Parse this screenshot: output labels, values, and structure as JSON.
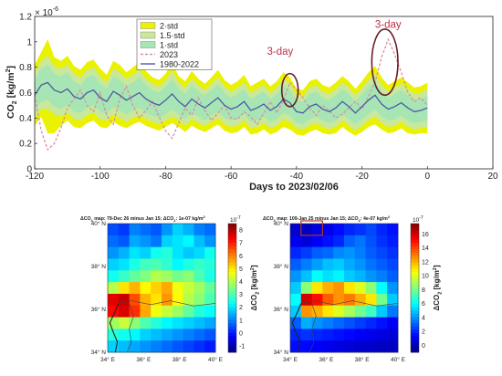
{
  "chart_data": [
    {
      "type": "area",
      "xlabel": "Days to 2023/02/06",
      "ylabel": "CO₂ [kg/m²]",
      "ylabel_main": "CO",
      "ylabel_sub": "2",
      "ylabel_unit": " [kg/m",
      "ylabel_unit_sup": "2",
      "ylabel_close": "]",
      "y_exponent": "× 10",
      "y_exponent_power": "-6",
      "xlim": [
        -120,
        20
      ],
      "ylim": [
        0,
        1.2e-06
      ],
      "x_ticks": [
        -120,
        -100,
        -80,
        -60,
        -40,
        -20,
        0,
        20
      ],
      "y_ticks": [
        0,
        0.2,
        0.4,
        0.6,
        0.8,
        1,
        1.2
      ],
      "grid": false,
      "legend_position": "top-left",
      "legend": [
        {
          "label": "2·std",
          "color": "#eaf200",
          "kind": "patch"
        },
        {
          "label": "1.5·std",
          "color": "#c9e89a",
          "kind": "patch"
        },
        {
          "label": "1·std",
          "color": "#a7e6b4",
          "kind": "patch"
        },
        {
          "label": "2023",
          "color": "#d98fa0",
          "kind": "dashed"
        },
        {
          "label": "1980-2022",
          "color": "#4b5aa8",
          "kind": "line"
        }
      ],
      "x": [
        -120,
        -118,
        -116,
        -114,
        -112,
        -110,
        -108,
        -106,
        -104,
        -102,
        -100,
        -98,
        -96,
        -94,
        -92,
        -90,
        -88,
        -86,
        -84,
        -82,
        -80,
        -78,
        -76,
        -74,
        -72,
        -70,
        -68,
        -66,
        -64,
        -62,
        -60,
        -58,
        -56,
        -54,
        -52,
        -50,
        -48,
        -46,
        -44,
        -42,
        -40,
        -38,
        -36,
        -34,
        -32,
        -30,
        -28,
        -26,
        -24,
        -22,
        -20,
        -18,
        -16,
        -14,
        -12,
        -10,
        -8,
        -6,
        -4,
        -2,
        0
      ],
      "series": [
        {
          "name": "1980-2022",
          "values": [
            5.8e-07,
            6.6e-07,
            6.8e-07,
            6.2e-07,
            6e-07,
            6.3e-07,
            5.7e-07,
            5.5e-07,
            6e-07,
            6.2e-07,
            5.6e-07,
            5.3e-07,
            6.1e-07,
            5.8e-07,
            5.4e-07,
            5.7e-07,
            6e-07,
            5.5e-07,
            5.2e-07,
            5e-07,
            5.4e-07,
            5.9e-07,
            5.3e-07,
            4.9e-07,
            5.5e-07,
            5.1e-07,
            4.8e-07,
            5.2e-07,
            5.6e-07,
            5e-07,
            4.7e-07,
            4.9e-07,
            5.3e-07,
            4.6e-07,
            4.8e-07,
            5.1e-07,
            4.6e-07,
            4.9e-07,
            5.5e-07,
            5.2e-07,
            4.5e-07,
            4.4e-07,
            4.9e-07,
            5.1e-07,
            4.7e-07,
            4.5e-07,
            4.8e-07,
            5.3e-07,
            4.9e-07,
            4.4e-07,
            4.9e-07,
            5.4e-07,
            5.8e-07,
            5.1e-07,
            4.7e-07,
            4.9e-07,
            5.2e-07,
            4.8e-07,
            4.5e-07,
            4.6e-07,
            4.8e-07
          ]
        },
        {
          "name": "2023",
          "values": [
            5.8e-07,
            3e-07,
            1.5e-07,
            2e-07,
            3.2e-07,
            4.8e-07,
            5.5e-07,
            6.2e-07,
            5e-07,
            4.5e-07,
            6e-07,
            4.2e-07,
            3.5e-07,
            5.5e-07,
            6.5e-07,
            5e-07,
            4e-07,
            4.6e-07,
            5.3e-07,
            4.1e-07,
            3e-07,
            2.4e-07,
            3.6e-07,
            4.8e-07,
            4.2e-07,
            5.6e-07,
            4.6e-07,
            3.8e-07,
            4.4e-07,
            5e-07,
            4e-07,
            3.9e-07,
            4.5e-07,
            4.1e-07,
            3.5e-07,
            4.4e-07,
            5.3e-07,
            4.4e-07,
            5.4e-07,
            6.8e-07,
            6.2e-07,
            5.6e-07,
            4.8e-07,
            4.2e-07,
            5e-07,
            4.6e-07,
            4e-07,
            4.3e-07,
            4.8e-07,
            5.3e-07,
            4.7e-07,
            5.7e-07,
            6.8e-07,
            8.8e-07,
            1.02e-06,
            9e-07,
            7.6e-07,
            6e-07,
            5.3e-07,
            5.6e-07,
            5e-07
          ]
        },
        {
          "name": "1·std",
          "lower": [
            4.6e-07,
            5.3e-07,
            5.4e-07,
            4.9e-07,
            4.7e-07,
            5e-07,
            4.5e-07,
            4.4e-07,
            4.8e-07,
            5e-07,
            4.5e-07,
            4.3e-07,
            4.9e-07,
            4.6e-07,
            4.3e-07,
            4.6e-07,
            4.8e-07,
            4.4e-07,
            4.2e-07,
            4e-07,
            4.3e-07,
            4.7e-07,
            4.3e-07,
            3.9e-07,
            4.4e-07,
            4.1e-07,
            3.8e-07,
            4.2e-07,
            4.5e-07,
            4e-07,
            3.8e-07,
            3.9e-07,
            4.3e-07,
            3.7e-07,
            3.8e-07,
            4.1e-07,
            3.7e-07,
            3.9e-07,
            4.4e-07,
            4.2e-07,
            3.6e-07,
            3.5e-07,
            3.9e-07,
            4.1e-07,
            3.8e-07,
            3.6e-07,
            3.8e-07,
            4.3e-07,
            3.9e-07,
            3.5e-07,
            3.9e-07,
            4.3e-07,
            4.7e-07,
            4.1e-07,
            3.8e-07,
            3.9e-07,
            4.2e-07,
            3.8e-07,
            3.6e-07,
            3.7e-07,
            3.8e-07
          ],
          "upper": [
            7e-07,
            7.9e-07,
            8.2e-07,
            7.5e-07,
            7.3e-07,
            7.6e-07,
            6.9e-07,
            6.6e-07,
            7.2e-07,
            7.4e-07,
            6.7e-07,
            6.3e-07,
            7.3e-07,
            7e-07,
            6.5e-07,
            6.8e-07,
            7.2e-07,
            6.6e-07,
            6.2e-07,
            6e-07,
            6.5e-07,
            7.1e-07,
            6.3e-07,
            5.9e-07,
            6.6e-07,
            6.1e-07,
            5.8e-07,
            6.2e-07,
            6.7e-07,
            6e-07,
            5.6e-07,
            5.9e-07,
            6.3e-07,
            5.5e-07,
            5.8e-07,
            6.1e-07,
            5.5e-07,
            5.9e-07,
            6.6e-07,
            6.2e-07,
            5.4e-07,
            5.3e-07,
            5.9e-07,
            6.1e-07,
            5.6e-07,
            5.4e-07,
            5.8e-07,
            6.3e-07,
            5.9e-07,
            5.3e-07,
            5.9e-07,
            6.5e-07,
            6.9e-07,
            6.1e-07,
            5.6e-07,
            5.9e-07,
            6.2e-07,
            5.8e-07,
            5.4e-07,
            5.5e-07,
            5.8e-07
          ]
        },
        {
          "name": "1.5·std",
          "lower": [
            4e-07,
            4.7e-07,
            4.7e-07,
            4.3e-07,
            4.1e-07,
            4.4e-07,
            3.9e-07,
            3.8e-07,
            4.2e-07,
            4.4e-07,
            3.9e-07,
            3.8e-07,
            4.3e-07,
            4e-07,
            3.7e-07,
            4e-07,
            4.2e-07,
            3.9e-07,
            3.7e-07,
            3.5e-07,
            3.8e-07,
            4.1e-07,
            3.8e-07,
            3.4e-07,
            3.9e-07,
            3.6e-07,
            3.4e-07,
            3.7e-07,
            4e-07,
            3.5e-07,
            3.3e-07,
            3.4e-07,
            3.8e-07,
            3.2e-07,
            3.3e-07,
            3.6e-07,
            3.2e-07,
            3.4e-07,
            3.9e-07,
            3.7e-07,
            3.2e-07,
            3.1e-07,
            3.4e-07,
            3.6e-07,
            3.3e-07,
            3.1e-07,
            3.3e-07,
            3.8e-07,
            3.4e-07,
            3e-07,
            3.4e-07,
            3.8e-07,
            4.1e-07,
            3.6e-07,
            3.3e-07,
            3.4e-07,
            3.7e-07,
            3.3e-07,
            3.1e-07,
            3.2e-07,
            3.3e-07
          ],
          "upper": [
            7.6e-07,
            8.5e-07,
            8.9e-07,
            8.1e-07,
            7.9e-07,
            8.2e-07,
            7.5e-07,
            7.2e-07,
            7.8e-07,
            8e-07,
            7.3e-07,
            6.8e-07,
            7.9e-07,
            7.6e-07,
            7.1e-07,
            7.4e-07,
            7.8e-07,
            7.1e-07,
            6.7e-07,
            6.5e-07,
            7e-07,
            7.7e-07,
            6.8e-07,
            6.4e-07,
            7.1e-07,
            6.6e-07,
            6.2e-07,
            6.7e-07,
            7.2e-07,
            6.5e-07,
            6.1e-07,
            6.4e-07,
            6.8e-07,
            6e-07,
            6.3e-07,
            6.6e-07,
            6e-07,
            6.4e-07,
            7.1e-07,
            6.7e-07,
            5.8e-07,
            5.7e-07,
            6.4e-07,
            6.6e-07,
            6.1e-07,
            5.9e-07,
            6.3e-07,
            6.8e-07,
            6.4e-07,
            5.8e-07,
            6.4e-07,
            7e-07,
            7.5e-07,
            6.6e-07,
            6.1e-07,
            6.4e-07,
            6.7e-07,
            6.3e-07,
            5.9e-07,
            6e-07,
            6.3e-07
          ]
        },
        {
          "name": "2·std",
          "lower": [
            3.4e-07,
            4.1e-07,
            2.8e-07,
            2.8e-07,
            3.4e-07,
            3.8e-07,
            3.3e-07,
            3.2e-07,
            3.6e-07,
            3.8e-07,
            3.3e-07,
            3.2e-07,
            3.7e-07,
            3.4e-07,
            3.2e-07,
            3.5e-07,
            3.7e-07,
            3.4e-07,
            3.2e-07,
            3e-07,
            3.3e-07,
            3.6e-07,
            3.3e-07,
            2.9e-07,
            3.4e-07,
            3.1e-07,
            2.9e-07,
            3.2e-07,
            3.5e-07,
            3e-07,
            2.8e-07,
            2.9e-07,
            3.3e-07,
            2.7e-07,
            2.8e-07,
            3.1e-07,
            2.7e-07,
            2.9e-07,
            3.3e-07,
            3.1e-07,
            2.7e-07,
            2.6e-07,
            2.9e-07,
            3.1e-07,
            2.8e-07,
            2.7e-07,
            2.8e-07,
            3.3e-07,
            2.9e-07,
            2.6e-07,
            2.9e-07,
            3.3e-07,
            3.5e-07,
            3.1e-07,
            2.8e-07,
            2.9e-07,
            3.2e-07,
            2.8e-07,
            2.7e-07,
            2.8e-07,
            2.8e-07
          ],
          "upper": [
            8.2e-07,
            9.2e-07,
            1.02e-06,
            8.8e-07,
            8.5e-07,
            8.9e-07,
            8.1e-07,
            7.8e-07,
            8.4e-07,
            8.6e-07,
            7.9e-07,
            7.4e-07,
            8.5e-07,
            8.2e-07,
            7.6e-07,
            8e-07,
            8.4e-07,
            7.7e-07,
            7.2e-07,
            7e-07,
            7.5e-07,
            8.3e-07,
            7.3e-07,
            6.9e-07,
            7.7e-07,
            7.1e-07,
            6.7e-07,
            7.2e-07,
            7.8e-07,
            7e-07,
            6.6e-07,
            6.9e-07,
            7.4e-07,
            6.5e-07,
            6.8e-07,
            7.1e-07,
            6.5e-07,
            6.9e-07,
            7.6e-07,
            7.2e-07,
            6.3e-07,
            6.2e-07,
            6.9e-07,
            7.1e-07,
            6.6e-07,
            6.4e-07,
            6.8e-07,
            7.3e-07,
            6.9e-07,
            6.3e-07,
            6.9e-07,
            7.6e-07,
            8.1e-07,
            7.2e-07,
            6.6e-07,
            6.9e-07,
            7.2e-07,
            6.8e-07,
            6.4e-07,
            6.5e-07,
            6.8e-07
          ]
        }
      ],
      "annotations": [
        {
          "text": "3-day",
          "x": -45,
          "y": 9e-07,
          "color": "#c0304a"
        },
        {
          "text": "3-day",
          "x": -12,
          "y": 1.11e-06,
          "color": "#c0304a"
        }
      ],
      "ellipses": [
        {
          "x": -42,
          "y": 6.2e-07,
          "rx_days": 2.5,
          "ry": 1.3e-07,
          "color": "#6b1c24"
        },
        {
          "x": -13,
          "y": 8.4e-07,
          "rx_days": 4.0,
          "ry": 2.6e-07,
          "color": "#6b1c24"
        }
      ]
    },
    {
      "type": "heatmap",
      "title_html": "ΔCO₂ map: 79-Dec 26 minus Jan 15; ΔCO₂: 1e-07 kg/m²",
      "title": "ΔCO",
      "title_sub": "2",
      "title_rest": " map: 79-Dec 26 minus Jan 15; ΔCO",
      "title_sub2": "2",
      "title_rest2": ": 1e-07 kg/m",
      "title_sup": "2",
      "x_ticks": [
        "34° E",
        "36° E",
        "38° E",
        "40° E"
      ],
      "y_ticks": [
        "34° N",
        "36° N",
        "38° N",
        "40° N"
      ],
      "colorbar_label": "ΔCO",
      "colorbar_sub": "2",
      "colorbar_unit": " [kg/m",
      "colorbar_sup": "2",
      "colorbar_close": "]",
      "colorbar_exponent": "10",
      "colorbar_exponent_power": "-7",
      "colorbar_ticks": [
        -1,
        0,
        1,
        2,
        3,
        4,
        5,
        6,
        7,
        8
      ],
      "clim": [
        -1.5,
        8.5
      ],
      "grid": [
        [
          0.5,
          0.3,
          1.0,
          0.8,
          0.6,
          1.2,
          1.8,
          1.5,
          1.0,
          0.8
        ],
        [
          0.8,
          0.6,
          1.4,
          1.2,
          0.9,
          1.8,
          2.0,
          2.2,
          1.6,
          1.2
        ],
        [
          1.2,
          1.5,
          2.0,
          1.8,
          2.4,
          2.6,
          2.0,
          1.7,
          1.9,
          2.4
        ],
        [
          1.8,
          2.0,
          2.5,
          2.9,
          3.0,
          2.7,
          2.2,
          2.5,
          2.8,
          2.6
        ],
        [
          2.4,
          2.8,
          3.2,
          3.5,
          4.0,
          3.8,
          3.4,
          3.6,
          3.0,
          2.5
        ],
        [
          4.0,
          5.0,
          5.5,
          4.8,
          5.2,
          5.6,
          4.6,
          4.2,
          3.8,
          3.2
        ],
        [
          7.5,
          7.8,
          6.5,
          5.5,
          5.0,
          5.8,
          4.8,
          4.0,
          3.6,
          3.0
        ],
        [
          7.2,
          7.6,
          6.8,
          5.6,
          4.6,
          4.2,
          3.8,
          3.2,
          2.6,
          2.3
        ],
        [
          3.8,
          4.2,
          3.6,
          3.0,
          2.6,
          2.2,
          2.0,
          1.8,
          1.6,
          1.4
        ],
        [
          2.6,
          2.4,
          2.2,
          1.8,
          1.6,
          1.4,
          1.2,
          1.0,
          0.8,
          0.6
        ],
        [
          1.8,
          1.6,
          1.4,
          1.2,
          1.0,
          0.8,
          0.6,
          0.4,
          0.2,
          0.0
        ]
      ]
    },
    {
      "type": "heatmap",
      "title": "ΔCO",
      "title_sub": "2",
      "title_rest": " map: 109-Jan 25 minus Jan 15; ΔCO",
      "title_sub2": "2",
      "title_rest2": ": 4e-07 kg/m",
      "title_sup": "2",
      "x_ticks": [
        "34° E",
        "36° E",
        "38° E",
        "40° E"
      ],
      "y_ticks": [
        "34° N",
        "36° N",
        "38° N",
        "40° N"
      ],
      "colorbar_label": "ΔCO",
      "colorbar_sub": "2",
      "colorbar_unit": " [kg/m",
      "colorbar_sup": "2",
      "colorbar_close": "]",
      "colorbar_exponent": "10",
      "colorbar_exponent_power": "-7",
      "colorbar_ticks": [
        0,
        2,
        4,
        6,
        8,
        10,
        12,
        14,
        16
      ],
      "clim": [
        -1,
        17.5
      ],
      "grid": [
        [
          0.5,
          0.2,
          0.8,
          1.0,
          1.5,
          2.0,
          2.2,
          2.6,
          2.0,
          1.6
        ],
        [
          1.0,
          0.6,
          1.2,
          1.6,
          2.0,
          3.0,
          3.4,
          2.8,
          2.2,
          1.8
        ],
        [
          2.0,
          2.4,
          3.0,
          3.2,
          3.8,
          4.0,
          3.6,
          3.0,
          2.6,
          2.2
        ],
        [
          3.0,
          3.6,
          4.2,
          4.8,
          5.0,
          4.4,
          4.0,
          3.4,
          3.0,
          2.6
        ],
        [
          4.0,
          4.8,
          6.0,
          5.4,
          5.8,
          5.0,
          4.6,
          4.0,
          3.6,
          3.0
        ],
        [
          5.0,
          8.5,
          11.0,
          12.0,
          12.5,
          11.0,
          10.0,
          8.5,
          6.0,
          4.0
        ],
        [
          6.0,
          16.0,
          15.0,
          13.5,
          12.5,
          13.0,
          12.0,
          11.0,
          8.0,
          5.0
        ],
        [
          5.0,
          12.5,
          12.0,
          11.0,
          10.0,
          9.0,
          8.0,
          7.0,
          5.0,
          3.5
        ],
        [
          3.0,
          4.5,
          4.0,
          3.6,
          3.2,
          2.8,
          2.4,
          2.0,
          1.6,
          1.2
        ],
        [
          2.0,
          2.2,
          2.0,
          1.8,
          1.6,
          1.4,
          1.2,
          1.0,
          0.8,
          0.6
        ],
        [
          1.5,
          1.4,
          1.2,
          1.0,
          0.8,
          0.6,
          0.4,
          0.4,
          0.2,
          0.2
        ]
      ],
      "highlight_box": {
        "col_start": 1,
        "col_end": 2
      }
    }
  ]
}
